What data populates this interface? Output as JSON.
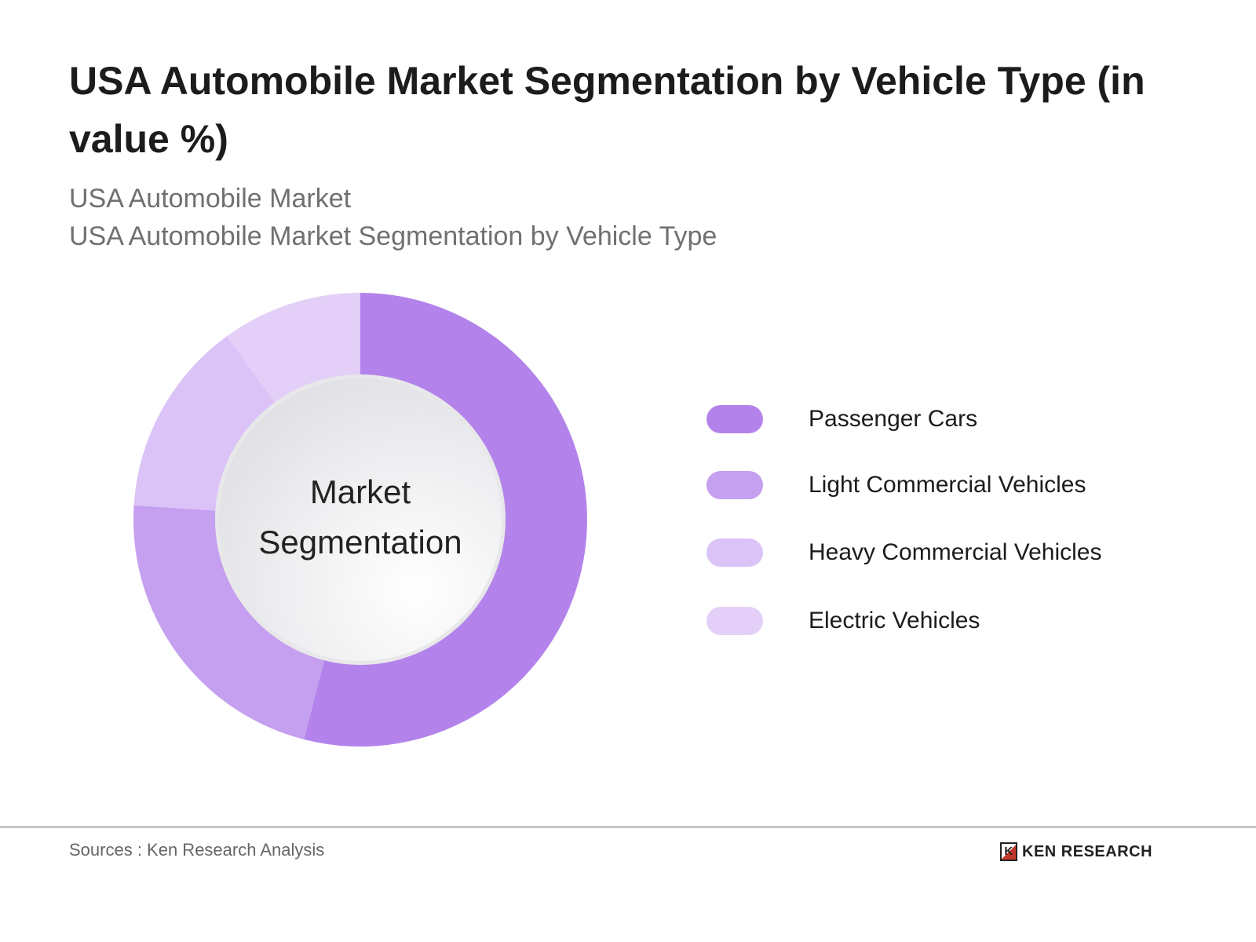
{
  "chart_data": {
    "type": "pie",
    "variant": "donut",
    "title": "USA Automobile Market Segmentation by Vehicle Type  (in value %)",
    "subtitle_lines": [
      "USA Automobile Market",
      "USA Automobile Market Segmentation by Vehicle Type"
    ],
    "center_label_lines": [
      "Market",
      "Segmentation"
    ],
    "categories": [
      "Passenger Cars",
      "Light Commercial Vehicles",
      "Heavy Commercial Vehicles",
      "Electric Vehicles"
    ],
    "values": [
      54,
      22,
      14,
      10
    ],
    "colors": [
      "#b383eb",
      "#c59ff0",
      "#dbc2f7",
      "#e3cff7"
    ],
    "legend_position": "right"
  },
  "footer": {
    "source": "Sources : Ken Research Analysis",
    "logo_text": "KEN RESEARCH"
  }
}
